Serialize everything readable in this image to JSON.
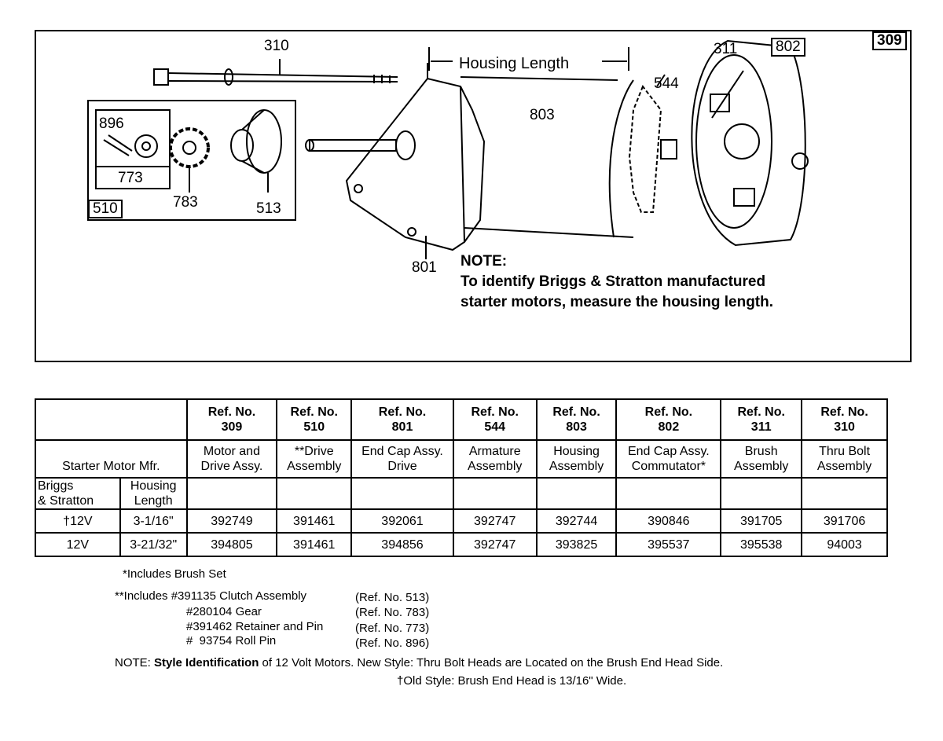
{
  "diagram": {
    "figure_number": "309",
    "callouts": [
      "310",
      "896",
      "773",
      "783",
      "510",
      "513",
      "801",
      "803",
      "544",
      "311",
      "802"
    ],
    "housing_length_label": "Housing Length",
    "note_title": "NOTE:",
    "note_lines": [
      "To identify Briggs & Stratton manufactured",
      "starter motors, measure the housing length."
    ]
  },
  "table": {
    "mfr_header": "Starter Motor Mfr.",
    "sub_headers": [
      "Briggs\n& Stratton",
      "Housing\nLength"
    ],
    "columns": [
      {
        "ref": "Ref. No.",
        "num": "309",
        "desc1": "Motor and",
        "desc2": "Drive Assy."
      },
      {
        "ref": "Ref. No.",
        "num": "510",
        "desc1": "**Drive",
        "desc2": "Assembly"
      },
      {
        "ref": "Ref. No.",
        "num": "801",
        "desc1": "End Cap Assy.",
        "desc2": "Drive"
      },
      {
        "ref": "Ref. No.",
        "num": "544",
        "desc1": "Armature",
        "desc2": "Assembly"
      },
      {
        "ref": "Ref. No.",
        "num": "803",
        "desc1": "Housing",
        "desc2": "Assembly"
      },
      {
        "ref": "Ref. No.",
        "num": "802",
        "desc1": "End Cap Assy.",
        "desc2": "Commutator*"
      },
      {
        "ref": "Ref. No.",
        "num": "311",
        "desc1": "Brush",
        "desc2": "Assembly"
      },
      {
        "ref": "Ref. No.",
        "num": "310",
        "desc1": "Thru Bolt",
        "desc2": "Assembly"
      }
    ],
    "rows": [
      [
        "†12V",
        "3-1/16\"",
        "392749",
        "391461",
        "392061",
        "392747",
        "392744",
        "390846",
        "391705",
        "391706"
      ],
      [
        "12V",
        "3-21/32\"",
        "394805",
        "391461",
        "394856",
        "392747",
        "393825",
        "395537",
        "395538",
        "94003"
      ]
    ]
  },
  "footnotes": {
    "single": "*Includes Brush Set",
    "double": [
      {
        "part": "**Includes #391135 Clutch Assembly",
        "ref": "(Ref. No. 513)"
      },
      {
        "part": "#280104 Gear",
        "ref": "(Ref. No. 783)"
      },
      {
        "part": "#391462 Retainer and Pin",
        "ref": "(Ref. No. 773)"
      },
      {
        "part": "#  93754 Roll Pin",
        "ref": "(Ref. No. 896)"
      }
    ],
    "note_prefix": "NOTE: ",
    "note_bold": "Style Identification",
    "note_rest": " of 12 Volt Motors. New Style: Thru Bolt Heads are Located on the Brush End Head Side.",
    "note_line2": "†Old Style: Brush End Head is 13/16\" Wide."
  }
}
